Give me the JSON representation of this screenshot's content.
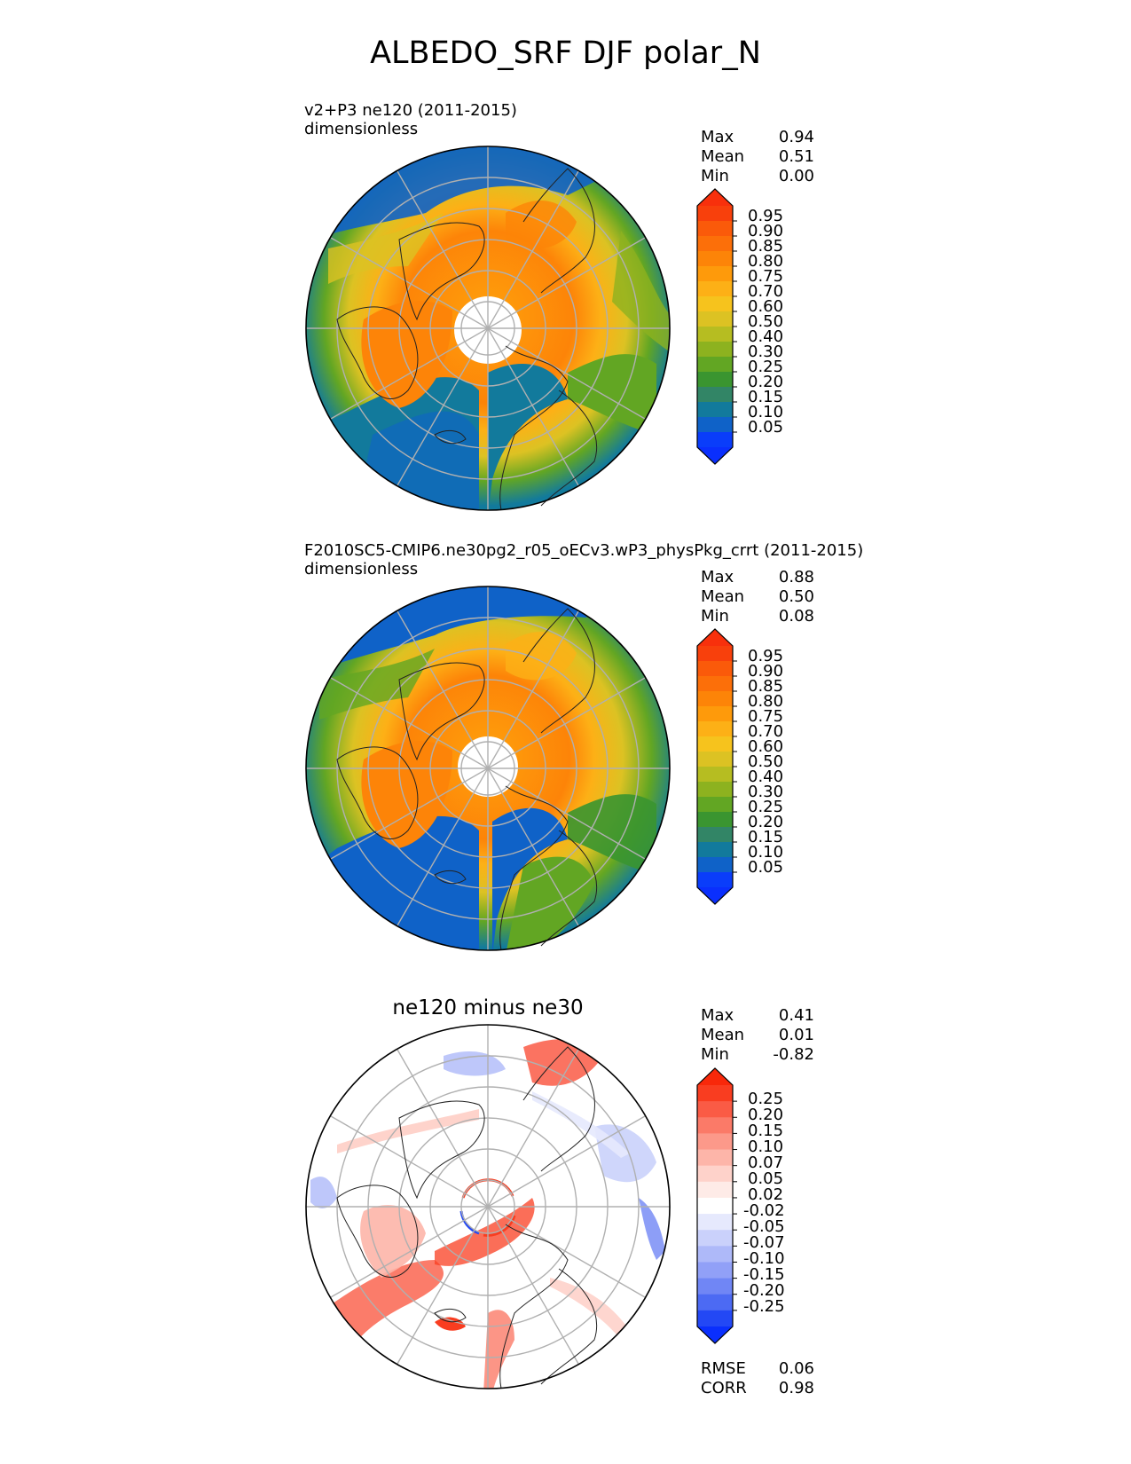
{
  "figure_title": "ALBEDO_SRF DJF polar_N",
  "panels": [
    {
      "id": "test",
      "title": "v2+P3 ne120 (2011-2015)",
      "units": "dimensionless",
      "stats": [
        {
          "label": "Max",
          "value": "0.94"
        },
        {
          "label": "Mean",
          "value": "0.51"
        },
        {
          "label": "Min",
          "value": "0.00"
        }
      ],
      "colorbar": {
        "ticks": [
          "0.95",
          "0.90",
          "0.85",
          "0.80",
          "0.75",
          "0.70",
          "0.60",
          "0.50",
          "0.40",
          "0.30",
          "0.25",
          "0.20",
          "0.15",
          "0.10",
          "0.05"
        ],
        "colors": [
          "#f8400c",
          "#fa5a0a",
          "#fc6f09",
          "#fd8408",
          "#fe9a0b",
          "#fdb016",
          "#f6c31d",
          "#dcc223",
          "#b6bd21",
          "#8db21f",
          "#62a623",
          "#3a9530",
          "#328566",
          "#127a9c",
          "#0f62c8",
          "#0a3dfa"
        ],
        "extend_top": "#f8300c",
        "extend_bottom": "#0a2ffd"
      }
    },
    {
      "id": "reference",
      "title": "F2010SC5-CMIP6.ne30pg2_r05_oECv3.wP3_physPkg_crrt (2011-2015)",
      "units": "dimensionless",
      "stats": [
        {
          "label": "Max",
          "value": "0.88"
        },
        {
          "label": "Mean",
          "value": "0.50"
        },
        {
          "label": "Min",
          "value": "0.08"
        }
      ],
      "colorbar": {
        "ticks": [
          "0.95",
          "0.90",
          "0.85",
          "0.80",
          "0.75",
          "0.70",
          "0.60",
          "0.50",
          "0.40",
          "0.30",
          "0.25",
          "0.20",
          "0.15",
          "0.10",
          "0.05"
        ],
        "colors": [
          "#f8400c",
          "#fa5a0a",
          "#fc6f09",
          "#fd8408",
          "#fe9a0b",
          "#fdb016",
          "#f6c31d",
          "#dcc223",
          "#b6bd21",
          "#8db21f",
          "#62a623",
          "#3a9530",
          "#328566",
          "#127a9c",
          "#0f62c8",
          "#0a3dfa"
        ],
        "extend_top": "#f8300c",
        "extend_bottom": "#0a2ffd"
      }
    },
    {
      "id": "difference",
      "title": "ne120 minus ne30",
      "stats": [
        {
          "label": "Max",
          "value": "0.41"
        },
        {
          "label": "Mean",
          "value": "0.01"
        },
        {
          "label": "Min",
          "value": "-0.82"
        }
      ],
      "colorbar": {
        "ticks": [
          "0.25",
          "0.20",
          "0.15",
          "0.10",
          "0.07",
          "0.05",
          "0.02",
          "-0.02",
          "-0.05",
          "-0.07",
          "-0.10",
          "-0.15",
          "-0.20",
          "-0.25"
        ],
        "colors": [
          "#f93d20",
          "#fa5b45",
          "#fb7a68",
          "#fc998a",
          "#fdb5a9",
          "#fed2ca",
          "#feebe7",
          "#ffffff",
          "#e6e9fd",
          "#cad1fb",
          "#aeb9f9",
          "#91a0f7",
          "#7086f5",
          "#4c6af3",
          "#2348f5"
        ],
        "extend_top": "#f8280a",
        "extend_bottom": "#0a2ffd"
      },
      "bottom_stats": [
        {
          "label": "RMSE",
          "value": "0.06"
        },
        {
          "label": "CORR",
          "value": "0.98"
        }
      ]
    }
  ],
  "chart_data": [
    {
      "type": "heatmap",
      "projection": "north polar stereographic",
      "title": "v2+P3 ne120 (2011-2015)",
      "units": "dimensionless",
      "stats": {
        "max": 0.94,
        "mean": 0.51,
        "min": 0.0
      },
      "levels": [
        0.05,
        0.1,
        0.15,
        0.2,
        0.25,
        0.3,
        0.4,
        0.5,
        0.6,
        0.7,
        0.75,
        0.8,
        0.85,
        0.9,
        0.95
      ]
    },
    {
      "type": "heatmap",
      "projection": "north polar stereographic",
      "title": "F2010SC5-CMIP6.ne30pg2_r05_oECv3.wP3_physPkg_crrt (2011-2015)",
      "units": "dimensionless",
      "stats": {
        "max": 0.88,
        "mean": 0.5,
        "min": 0.08
      },
      "levels": [
        0.05,
        0.1,
        0.15,
        0.2,
        0.25,
        0.3,
        0.4,
        0.5,
        0.6,
        0.7,
        0.75,
        0.8,
        0.85,
        0.9,
        0.95
      ]
    },
    {
      "type": "heatmap",
      "projection": "north polar stereographic",
      "title": "ne120 minus ne30",
      "stats": {
        "max": 0.41,
        "mean": 0.01,
        "min": -0.82,
        "rmse": 0.06,
        "corr": 0.98
      },
      "levels": [
        -0.25,
        -0.2,
        -0.15,
        -0.1,
        -0.07,
        -0.05,
        -0.02,
        0.02,
        0.05,
        0.07,
        0.1,
        0.15,
        0.2,
        0.25
      ]
    }
  ]
}
